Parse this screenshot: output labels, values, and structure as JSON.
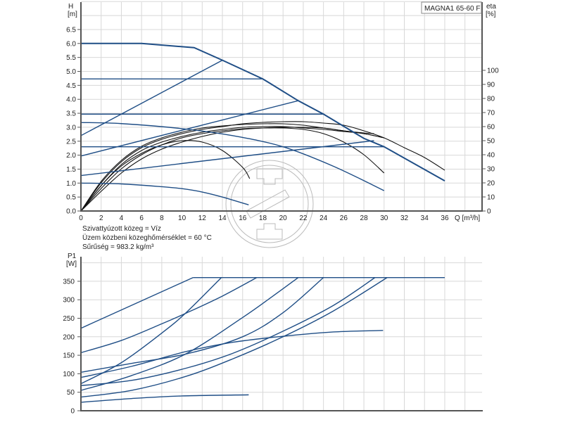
{
  "chart_data": [
    {
      "type": "line",
      "title": "MAGNA1 65-60 F",
      "xlabel": "Q [m³/h]",
      "ylabel": "H",
      "ylabel_unit": "[m]",
      "y2label": "eta",
      "y2label_unit": "[%]",
      "xlim": [
        0,
        38
      ],
      "ylim": [
        0,
        7.5
      ],
      "y2lim": [
        0,
        100
      ],
      "grid": true,
      "x_ticks": [
        "0",
        "2",
        "4",
        "6",
        "8",
        "10",
        "12",
        "14",
        "16",
        "18",
        "20",
        "22",
        "24",
        "26",
        "28",
        "30",
        "32",
        "34",
        "36"
      ],
      "y_ticks": [
        "0.0",
        "0.5",
        "1.0",
        "1.5",
        "2.0",
        "2.5",
        "3.0",
        "3.5",
        "4.0",
        "4.5",
        "5.0",
        "5.5",
        "6.0",
        "6.5"
      ],
      "y2_ticks": [
        "0",
        "10",
        "20",
        "30",
        "40",
        "50",
        "60",
        "70",
        "80",
        "90",
        "100"
      ],
      "head_curves": [
        {
          "x": [
            0,
            6,
            11.2,
            14,
            18,
            21.5,
            24,
            28,
            30,
            36
          ],
          "y": [
            6.0,
            6.0,
            5.85,
            5.4,
            4.73,
            3.95,
            3.47,
            2.6,
            2.3,
            1.08
          ],
          "bold": true
        },
        {
          "x": [
            0,
            18
          ],
          "y": [
            4.73,
            4.73
          ]
        },
        {
          "x": [
            0,
            24
          ],
          "y": [
            3.47,
            3.47
          ]
        },
        {
          "x": [
            0,
            30
          ],
          "y": [
            2.3,
            2.3
          ]
        },
        {
          "x": [
            0,
            14
          ],
          "y": [
            2.7,
            5.4
          ]
        },
        {
          "x": [
            0,
            21.5
          ],
          "y": [
            1.97,
            3.95
          ]
        },
        {
          "x": [
            0,
            29
          ],
          "y": [
            1.27,
            2.52
          ]
        },
        {
          "x": [
            0,
            4,
            10,
            15,
            20,
            25,
            30
          ],
          "y": [
            3.17,
            3.13,
            2.95,
            2.7,
            2.3,
            1.6,
            0.73
          ]
        },
        {
          "x": [
            0,
            4,
            8,
            10,
            12,
            14,
            16.6
          ],
          "y": [
            1.0,
            0.97,
            0.87,
            0.8,
            0.68,
            0.5,
            0.22
          ]
        }
      ],
      "efficiency_curves": [
        {
          "x": [
            0,
            2,
            4,
            6,
            8,
            10,
            12,
            14,
            16,
            16.7
          ],
          "y": [
            0,
            18,
            32,
            41,
            47,
            50,
            49,
            43,
            31,
            23
          ]
        },
        {
          "x": [
            0,
            2,
            4,
            6,
            8,
            10,
            12,
            14,
            16,
            18,
            20,
            22,
            24,
            26,
            28,
            30
          ],
          "y": [
            0,
            16,
            30,
            40,
            47,
            52,
            55,
            57,
            58.5,
            59,
            59,
            58,
            55,
            49,
            40,
            27
          ]
        },
        {
          "x": [
            0,
            2,
            4,
            6,
            8,
            10,
            12,
            14,
            16,
            18,
            20,
            22,
            24,
            26,
            28,
            30,
            32,
            34,
            36
          ],
          "y": [
            0,
            20,
            35,
            45,
            51,
            55,
            58,
            60,
            62,
            63,
            63.5,
            63.5,
            62.5,
            61,
            57,
            52,
            45,
            38,
            29
          ]
        },
        {
          "x": [
            0,
            2,
            4,
            6,
            8,
            10,
            12,
            14,
            16,
            18,
            20,
            22,
            24,
            26,
            28,
            30
          ],
          "y": [
            0,
            18,
            33,
            43,
            49,
            53,
            56,
            58,
            59.5,
            60,
            60,
            59,
            58,
            56.5,
            55,
            52
          ]
        },
        {
          "x": [
            0,
            2,
            4,
            6,
            8,
            10,
            12,
            14,
            16,
            18,
            20,
            22,
            24,
            26,
            28,
            30
          ],
          "y": [
            0,
            14,
            27,
            37,
            44,
            49,
            53,
            56,
            58,
            59,
            59.5,
            59.5,
            59,
            57,
            55,
            52
          ]
        },
        {
          "x": [
            0,
            2,
            4,
            6,
            8,
            10,
            12,
            14,
            16,
            18,
            20,
            22,
            24,
            26,
            28,
            29
          ],
          "y": [
            0,
            21,
            36,
            46,
            52,
            56,
            59,
            60.5,
            61.5,
            62,
            62,
            61,
            59,
            57,
            55.5,
            55
          ]
        }
      ]
    },
    {
      "type": "line",
      "ylabel": "P1",
      "ylabel_unit": "[W]",
      "xlim": [
        0,
        38
      ],
      "ylim": [
        0,
        400
      ],
      "grid": true,
      "y_ticks": [
        "0",
        "50",
        "100",
        "150",
        "200",
        "250",
        "300",
        "350"
      ],
      "power_curves": [
        {
          "x": [
            0,
            11.1
          ],
          "y": [
            223,
            360
          ]
        },
        {
          "x": [
            0,
            4,
            8,
            10.5,
            14,
            17.4
          ],
          "y": [
            157,
            190,
            235,
            265,
            310,
            360
          ]
        },
        {
          "x": [
            0,
            4,
            8,
            10.4,
            13.9
          ],
          "y": [
            73,
            130,
            210,
            265,
            360
          ]
        },
        {
          "x": [
            0,
            5,
            10.5,
            16,
            20,
            24
          ],
          "y": [
            104,
            128,
            154,
            200,
            265,
            360
          ]
        },
        {
          "x": [
            0,
            5,
            10.4,
            16,
            19,
            21.5
          ],
          "y": [
            55,
            95,
            154,
            252,
            310,
            360
          ]
        },
        {
          "x": [
            0,
            5,
            10.4,
            15,
            19.9,
            25,
            29.9
          ],
          "y": [
            90,
            120,
            160,
            185,
            201,
            213,
            217
          ]
        },
        {
          "x": [
            0,
            5,
            10.4,
            15,
            20,
            25,
            29.1
          ],
          "y": [
            68,
            82,
            115,
            155,
            215,
            285,
            360
          ]
        },
        {
          "x": [
            0,
            5,
            10.4,
            15,
            20,
            25,
            30.3
          ],
          "y": [
            37,
            55,
            93,
            140,
            200,
            270,
            360
          ]
        },
        {
          "x": [
            0,
            5,
            10,
            16.6
          ],
          "y": [
            23,
            33,
            40,
            43
          ]
        },
        {
          "x": [
            11.1,
            36
          ],
          "y": [
            360,
            360
          ]
        }
      ]
    }
  ],
  "fluid_info": [
    "Szivattyúzott közeg = Víz",
    "Üzem közbeni közeghőmérséklet = 60 °C",
    "Sűrűség = 983.2 kg/m³"
  ],
  "colors": {
    "curve_blue": "#1f4e86",
    "curve_black": "#111111",
    "grid": "#d8d8d8"
  }
}
